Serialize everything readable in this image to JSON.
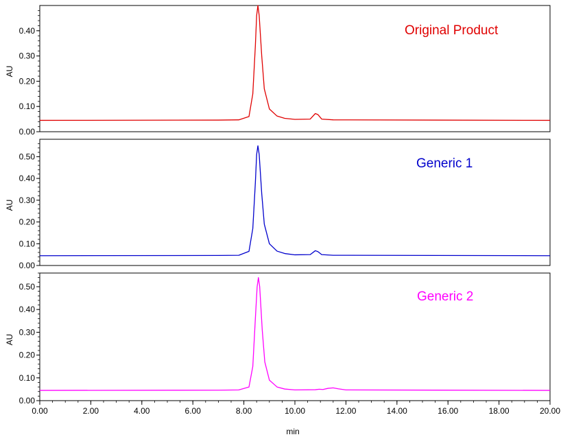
{
  "chart_data": {
    "type": "line",
    "x_axis": {
      "label": "min",
      "range": [
        0,
        20
      ],
      "ticks": [
        "0.00",
        "2.00",
        "4.00",
        "6.00",
        "8.00",
        "10.00",
        "12.00",
        "14.00",
        "16.00",
        "18.00",
        "20.00"
      ]
    },
    "panels": [
      {
        "name": "Original Product",
        "color": "#e00000",
        "ylabel": "AU",
        "ylim": [
          0,
          0.5
        ],
        "yticks": [
          "0.00",
          "0.10",
          "0.20",
          "0.30",
          "0.40"
        ],
        "baseline": 0.045,
        "points": [
          [
            0,
            0.045
          ],
          [
            7.0,
            0.046
          ],
          [
            7.8,
            0.047
          ],
          [
            8.2,
            0.06
          ],
          [
            8.35,
            0.15
          ],
          [
            8.45,
            0.34
          ],
          [
            8.5,
            0.46
          ],
          [
            8.55,
            0.5
          ],
          [
            8.6,
            0.46
          ],
          [
            8.7,
            0.3
          ],
          [
            8.8,
            0.17
          ],
          [
            9.0,
            0.09
          ],
          [
            9.3,
            0.062
          ],
          [
            9.6,
            0.053
          ],
          [
            10.0,
            0.049
          ],
          [
            10.6,
            0.05
          ],
          [
            10.8,
            0.072
          ],
          [
            10.9,
            0.068
          ],
          [
            11.05,
            0.05
          ],
          [
            11.5,
            0.047
          ],
          [
            20,
            0.045
          ]
        ]
      },
      {
        "name": "Generic 1",
        "color": "#0000cc",
        "ylabel": "AU",
        "ylim": [
          0,
          0.58
        ],
        "yticks": [
          "0.00",
          "0.10",
          "0.20",
          "0.30",
          "0.40",
          "0.50"
        ],
        "baseline": 0.045,
        "points": [
          [
            0,
            0.045
          ],
          [
            7.0,
            0.046
          ],
          [
            7.8,
            0.047
          ],
          [
            8.2,
            0.065
          ],
          [
            8.35,
            0.17
          ],
          [
            8.45,
            0.38
          ],
          [
            8.5,
            0.51
          ],
          [
            8.55,
            0.55
          ],
          [
            8.6,
            0.51
          ],
          [
            8.7,
            0.33
          ],
          [
            8.8,
            0.19
          ],
          [
            9.0,
            0.1
          ],
          [
            9.3,
            0.066
          ],
          [
            9.6,
            0.055
          ],
          [
            10.0,
            0.049
          ],
          [
            10.6,
            0.05
          ],
          [
            10.8,
            0.068
          ],
          [
            10.9,
            0.064
          ],
          [
            11.05,
            0.05
          ],
          [
            11.5,
            0.047
          ],
          [
            20,
            0.045
          ]
        ]
      },
      {
        "name": "Generic 2",
        "color": "#ff00ff",
        "ylabel": "AU",
        "ylim": [
          0,
          0.56
        ],
        "yticks": [
          "0.00",
          "0.10",
          "0.20",
          "0.30",
          "0.40",
          "0.50"
        ],
        "baseline": 0.045,
        "points": [
          [
            0,
            0.045
          ],
          [
            7.0,
            0.046
          ],
          [
            7.8,
            0.047
          ],
          [
            8.2,
            0.06
          ],
          [
            8.35,
            0.15
          ],
          [
            8.45,
            0.36
          ],
          [
            8.52,
            0.5
          ],
          [
            8.57,
            0.54
          ],
          [
            8.62,
            0.5
          ],
          [
            8.72,
            0.31
          ],
          [
            8.82,
            0.17
          ],
          [
            9.0,
            0.09
          ],
          [
            9.3,
            0.06
          ],
          [
            9.6,
            0.051
          ],
          [
            10.0,
            0.047
          ],
          [
            10.8,
            0.048
          ],
          [
            10.95,
            0.05
          ],
          [
            11.1,
            0.049
          ],
          [
            11.3,
            0.054
          ],
          [
            11.5,
            0.056
          ],
          [
            11.7,
            0.052
          ],
          [
            12.0,
            0.047
          ],
          [
            20,
            0.045
          ]
        ]
      }
    ]
  }
}
